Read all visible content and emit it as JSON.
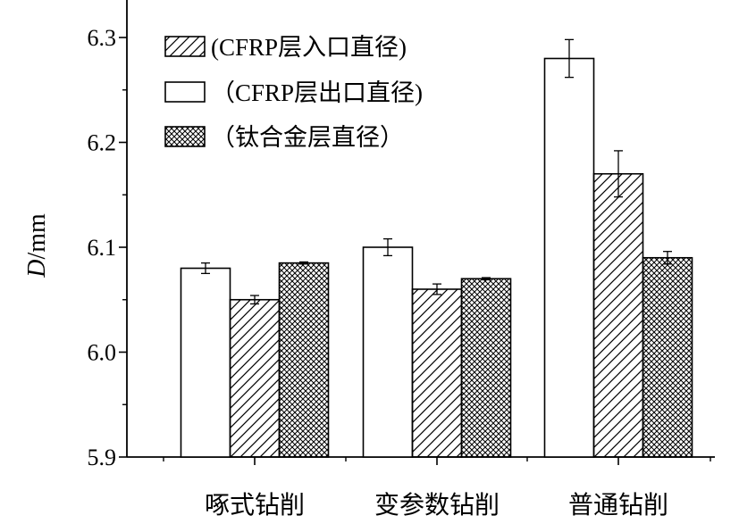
{
  "chart_data": {
    "type": "bar",
    "title": "",
    "ylabel": "D/mm",
    "ylabel_italic": "D",
    "ylabel_unit": "/mm",
    "xlabel": "",
    "ylim": [
      5.9,
      6.35
    ],
    "yticks": [
      "5.9",
      "6.0",
      "6.1",
      "6.2",
      "6.3"
    ],
    "categories": [
      "啄式钻削",
      "变参数钻削",
      "普通钻削"
    ],
    "series": [
      {
        "name": "（CFRP层出口直径)",
        "pattern": "empty",
        "values": [
          6.08,
          6.1,
          6.28
        ],
        "errors": [
          0.005,
          0.008,
          0.018
        ]
      },
      {
        "name": "(CFRP层入口直径)",
        "pattern": "hatch",
        "values": [
          6.05,
          6.06,
          6.17
        ],
        "errors": [
          0.004,
          0.005,
          0.022
        ]
      },
      {
        "name": "（钛合金层直径）",
        "pattern": "crosshatch",
        "values": [
          6.085,
          6.07,
          6.09
        ],
        "errors": [
          0.001,
          0.001,
          0.006
        ]
      }
    ],
    "legend_order": [
      1,
      0,
      2
    ],
    "legend_position": "top-left",
    "grid": false,
    "colors": {
      "bar_stroke": "#000000",
      "bar_fill": "#ffffff",
      "axis": "#000000"
    }
  }
}
